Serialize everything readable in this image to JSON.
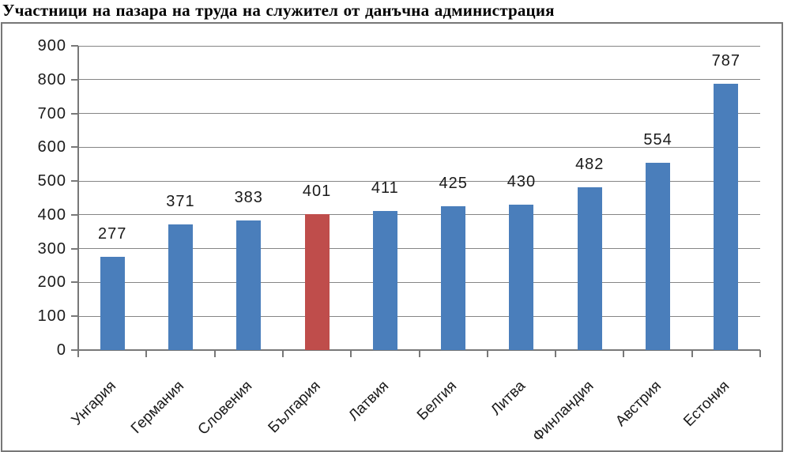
{
  "title": "Участници на пазара на труда на служител от данъчна администрация",
  "chart_data": {
    "type": "bar",
    "title": "Участници на пазара на труда на служител от данъчна администрация",
    "categories": [
      "Унгария",
      "Германия",
      "Словения",
      "България",
      "Латвия",
      "Белгия",
      "Литва",
      "Финландия",
      "Австрия",
      "Естония"
    ],
    "values": [
      277,
      371,
      383,
      401,
      411,
      425,
      430,
      482,
      554,
      787
    ],
    "data_labels": [
      "277",
      "371",
      "383",
      "401",
      "411",
      "425",
      "430",
      "482",
      "554",
      "787"
    ],
    "highlight_index": 3,
    "highlight_category": "България",
    "ylim": [
      0,
      900
    ],
    "ytick_interval": 100,
    "ytick_labels": [
      "0",
      "100",
      "200",
      "300",
      "400",
      "500",
      "600",
      "700",
      "800",
      "900"
    ],
    "grid": true,
    "legend": "none",
    "xlabel": "",
    "ylabel": "",
    "x_label_rotation_deg": -45,
    "colors": {
      "bar": "#4A7EBB",
      "highlight_bar": "#BF4D4B",
      "gridline": "#858585",
      "axis": "#787878",
      "chart_border": "#777777",
      "text": "#1A1A1A",
      "title_text": "#000000",
      "background": "#FFFFFF"
    }
  }
}
